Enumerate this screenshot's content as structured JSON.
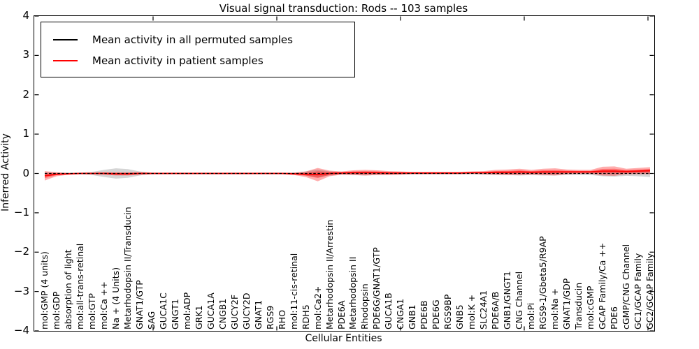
{
  "title": "Visual signal transduction: Rods -- 103 samples",
  "axes": {
    "xlabel": "Cellular Entities",
    "ylabel": "Inferred Activity",
    "yticks": [
      "4",
      "3",
      "2",
      "1",
      "0",
      "−1",
      "−2",
      "−3",
      "−4"
    ]
  },
  "legend": {
    "entries": [
      {
        "label": "Mean activity in all permuted samples",
        "color": "#000000"
      },
      {
        "label": "Mean activity in patient samples",
        "color": "#ff0000"
      }
    ]
  },
  "chart_data": {
    "type": "line",
    "title": "Visual signal transduction: Rods -- 103 samples",
    "xlabel": "Cellular Entities",
    "ylabel": "Inferred Activity",
    "ylim": [
      -4,
      4
    ],
    "grid": false,
    "legend_position": "upper left",
    "categories": [
      "mol:GMP (4 units)",
      "mol:GDP",
      "absorption of light",
      "mol:all-trans-retinal",
      "mol:GTP",
      "mol:Ca ++",
      "Na + (4 Units)",
      "Metarhodopsin II/Transducin",
      "GNAT1/GTP",
      "SAG",
      "GUCA1C",
      "GNGT1",
      "mol:ADP",
      "GRK1",
      "GUCA1A",
      "CNGB1",
      "GUCY2F",
      "GUCY2D",
      "GNAT1",
      "RGS9",
      "RHO",
      "mol:11-cis-retinal",
      "RDH5",
      "mol:Ca2+",
      "Metarhodopsin II/Arrestin",
      "PDE6A",
      "Metarhodopsin II",
      "Rhodopsin",
      "PDE6G/GNAT1/GTP",
      "GUCA1B",
      "CNGA1",
      "GNB1",
      "PDE6B",
      "PDE6G",
      "RGS9BP",
      "GNB5",
      "mol:K +",
      "SLC24A1",
      "PDE6A/B",
      "GNB1/GNGT1",
      "CNG Channel",
      "mol:Pi",
      "RGS9-1/Gbeta5/R9AP",
      "mol:Na +",
      "GNAT1/GDP",
      "Transducin",
      "mol:cGMP",
      "GCAP Family/Ca ++",
      "PDE6",
      "cGMP/CNG Channel",
      "GC1/GCAP Family",
      "GC2/GCAP Family"
    ],
    "series": [
      {
        "name": "Mean activity in all permuted samples",
        "color": "#000000",
        "style": "dashed",
        "band_color": "#b3b3b3",
        "band_opacity": 0.55,
        "values": [
          0,
          0,
          0,
          0,
          0,
          0,
          0,
          0,
          0,
          0,
          0,
          0,
          0,
          0,
          0,
          0,
          0,
          0,
          0,
          0,
          0,
          0,
          0,
          0,
          0,
          0,
          0,
          0,
          0,
          0,
          0,
          0,
          0,
          0,
          0,
          0,
          0,
          0,
          0,
          0,
          0,
          0,
          0,
          0,
          0,
          0,
          0,
          0,
          0,
          0,
          0,
          0
        ],
        "band_halfwidth": [
          0.03,
          0.02,
          0.02,
          0.02,
          0.04,
          0.09,
          0.13,
          0.11,
          0.05,
          0.02,
          0.015,
          0.015,
          0.015,
          0.015,
          0.015,
          0.015,
          0.015,
          0.015,
          0.015,
          0.015,
          0.015,
          0.02,
          0.05,
          0.1,
          0.05,
          0.03,
          0.04,
          0.05,
          0.04,
          0.03,
          0.03,
          0.02,
          0.02,
          0.02,
          0.02,
          0.02,
          0.02,
          0.03,
          0.04,
          0.04,
          0.05,
          0.04,
          0.05,
          0.05,
          0.04,
          0.04,
          0.04,
          0.07,
          0.08,
          0.06,
          0.07,
          0.09
        ]
      },
      {
        "name": "Mean activity in patient samples",
        "color": "#ff0000",
        "style": "solid",
        "band_color": "#ff0000",
        "band_opacity": 0.32,
        "values": [
          -0.06,
          -0.02,
          -0.01,
          0,
          0,
          0,
          -0.01,
          -0.01,
          0,
          0,
          0,
          0,
          0,
          0,
          0,
          0,
          0,
          0,
          0,
          0,
          0,
          -0.01,
          -0.02,
          -0.03,
          0,
          0.01,
          0.02,
          0.02,
          0.02,
          0.01,
          0.01,
          0.01,
          0.01,
          0.01,
          0.01,
          0.01,
          0.02,
          0.02,
          0.03,
          0.03,
          0.04,
          0.03,
          0.04,
          0.04,
          0.04,
          0.04,
          0.04,
          0.06,
          0.06,
          0.05,
          0.06,
          0.07
        ],
        "band_halfwidth": [
          0.12,
          0.05,
          0.02,
          0.02,
          0.02,
          0.03,
          0.04,
          0.04,
          0.03,
          0.02,
          0.02,
          0.02,
          0.02,
          0.02,
          0.02,
          0.02,
          0.02,
          0.02,
          0.02,
          0.02,
          0.02,
          0.03,
          0.07,
          0.17,
          0.07,
          0.04,
          0.06,
          0.07,
          0.06,
          0.05,
          0.04,
          0.03,
          0.03,
          0.03,
          0.03,
          0.03,
          0.03,
          0.04,
          0.06,
          0.07,
          0.08,
          0.06,
          0.08,
          0.09,
          0.06,
          0.05,
          0.05,
          0.11,
          0.12,
          0.07,
          0.08,
          0.09
        ]
      }
    ]
  }
}
